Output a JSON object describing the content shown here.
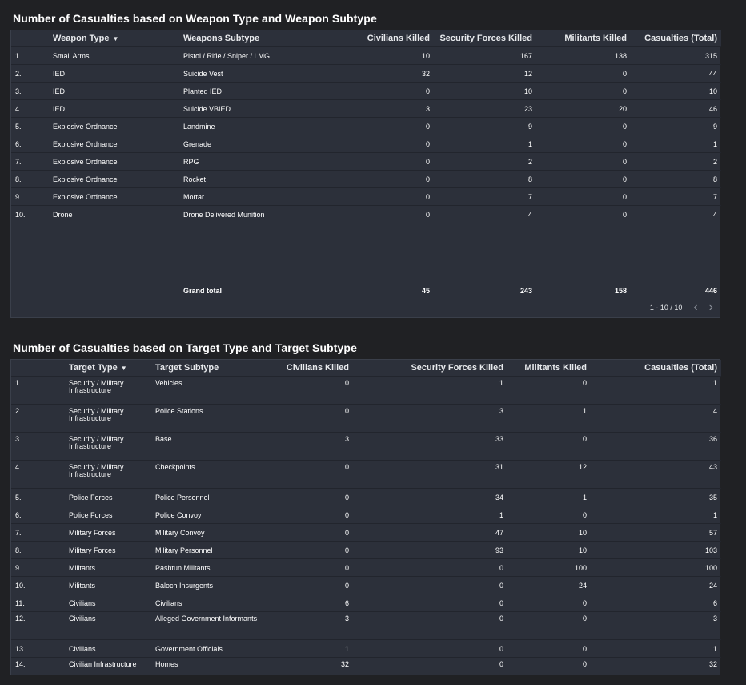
{
  "weapon_section": {
    "title": "Number of Casualties based on Weapon Type and Weapon Subtype",
    "columns": {
      "type": "Weapon Type",
      "subtype": "Weapons Subtype",
      "civ": "Civilians Killed",
      "sec": "Security Forces Killed",
      "mil": "Militants Killed",
      "total": "Casualties (Total)"
    },
    "rows": [
      {
        "idx": "1.",
        "type": "Small Arms",
        "subtype": "Pistol / Rifle / Sniper / LMG",
        "civ": "10",
        "sec": "167",
        "mil": "138",
        "total": "315"
      },
      {
        "idx": "2.",
        "type": "IED",
        "subtype": "Suicide Vest",
        "civ": "32",
        "sec": "12",
        "mil": "0",
        "total": "44"
      },
      {
        "idx": "3.",
        "type": "IED",
        "subtype": "Planted IED",
        "civ": "0",
        "sec": "10",
        "mil": "0",
        "total": "10"
      },
      {
        "idx": "4.",
        "type": "IED",
        "subtype": "Suicide VBIED",
        "civ": "3",
        "sec": "23",
        "mil": "20",
        "total": "46"
      },
      {
        "idx": "5.",
        "type": "Explosive Ordnance",
        "subtype": "Landmine",
        "civ": "0",
        "sec": "9",
        "mil": "0",
        "total": "9"
      },
      {
        "idx": "6.",
        "type": "Explosive Ordnance",
        "subtype": "Grenade",
        "civ": "0",
        "sec": "1",
        "mil": "0",
        "total": "1"
      },
      {
        "idx": "7.",
        "type": "Explosive Ordnance",
        "subtype": "RPG",
        "civ": "0",
        "sec": "2",
        "mil": "0",
        "total": "2"
      },
      {
        "idx": "8.",
        "type": "Explosive Ordnance",
        "subtype": "Rocket",
        "civ": "0",
        "sec": "8",
        "mil": "0",
        "total": "8"
      },
      {
        "idx": "9.",
        "type": "Explosive Ordnance",
        "subtype": "Mortar",
        "civ": "0",
        "sec": "7",
        "mil": "0",
        "total": "7"
      },
      {
        "idx": "10.",
        "type": "Drone",
        "subtype": "Drone Delivered Munition",
        "civ": "0",
        "sec": "4",
        "mil": "0",
        "total": "4"
      }
    ],
    "grand_total": {
      "label": "Grand total",
      "civ": "45",
      "sec": "243",
      "mil": "158",
      "total": "446"
    },
    "pagination": "1 - 10 / 10"
  },
  "target_section": {
    "title": "Number of Casualties based on Target Type and Target Subtype",
    "columns": {
      "type": "Target Type",
      "subtype": "Target Subtype",
      "civ": "Civilians Killed",
      "sec": "Security Forces Killed",
      "mil": "Militants Killed",
      "total": "Casualties (Total)"
    },
    "rows": [
      {
        "idx": "1.",
        "type": "Security / Military Infrastructure",
        "subtype": "Vehicles",
        "civ": "0",
        "sec": "1",
        "mil": "0",
        "total": "1"
      },
      {
        "idx": "2.",
        "type": "Security / Military Infrastructure",
        "subtype": "Police Stations",
        "civ": "0",
        "sec": "3",
        "mil": "1",
        "total": "4"
      },
      {
        "idx": "3.",
        "type": "Security / Military Infrastructure",
        "subtype": "Base",
        "civ": "3",
        "sec": "33",
        "mil": "0",
        "total": "36"
      },
      {
        "idx": "4.",
        "type": "Security / Military Infrastructure",
        "subtype": "Checkpoints",
        "civ": "0",
        "sec": "31",
        "mil": "12",
        "total": "43"
      },
      {
        "idx": "5.",
        "type": "Police Forces",
        "subtype": "Police Personnel",
        "civ": "0",
        "sec": "34",
        "mil": "1",
        "total": "35"
      },
      {
        "idx": "6.",
        "type": "Police Forces",
        "subtype": "Police Convoy",
        "civ": "0",
        "sec": "1",
        "mil": "0",
        "total": "1"
      },
      {
        "idx": "7.",
        "type": "Military Forces",
        "subtype": "Military Convoy",
        "civ": "0",
        "sec": "47",
        "mil": "10",
        "total": "57"
      },
      {
        "idx": "8.",
        "type": "Military Forces",
        "subtype": "Military Personnel",
        "civ": "0",
        "sec": "93",
        "mil": "10",
        "total": "103"
      },
      {
        "idx": "9.",
        "type": "Militants",
        "subtype": "Pashtun Militants",
        "civ": "0",
        "sec": "0",
        "mil": "100",
        "total": "100"
      },
      {
        "idx": "10.",
        "type": "Militants",
        "subtype": "Baloch Insurgents",
        "civ": "0",
        "sec": "0",
        "mil": "24",
        "total": "24"
      },
      {
        "idx": "11.",
        "type": "Civilians",
        "subtype": "Civilians",
        "civ": "6",
        "sec": "0",
        "mil": "0",
        "total": "6"
      },
      {
        "idx": "12.",
        "type": "Civilians",
        "subtype": "Alleged Government Informants",
        "civ": "3",
        "sec": "0",
        "mil": "0",
        "total": "3"
      },
      {
        "idx": "13.",
        "type": "Civilians",
        "subtype": "Government Officials",
        "civ": "1",
        "sec": "0",
        "mil": "0",
        "total": "1"
      },
      {
        "idx": "14.",
        "type": "Civilian Infrastructure",
        "subtype": "Homes",
        "civ": "32",
        "sec": "0",
        "mil": "0",
        "total": "32"
      }
    ]
  }
}
